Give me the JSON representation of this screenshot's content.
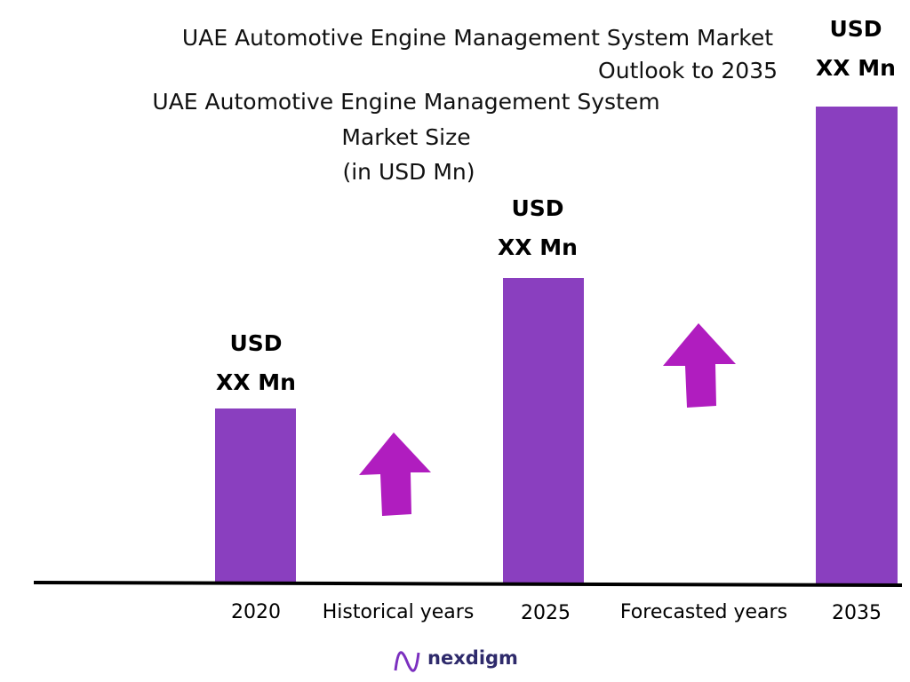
{
  "header": {
    "title_lines": [
      "UAE Automotive Engine Management System Market",
      "Outlook to 2035"
    ],
    "subtitle_lines": [
      "UAE Automotive Engine Management System",
      "Market Size",
      "(in USD Mn)"
    ]
  },
  "bars": [
    {
      "year": "2020",
      "label_lines": [
        "USD",
        "XX Mn"
      ]
    },
    {
      "year": "2025",
      "label_lines": [
        "USD",
        "XX Mn"
      ]
    },
    {
      "year": "2035",
      "label_lines": [
        "USD",
        "XX Mn"
      ]
    }
  ],
  "periods": [
    "Historical years",
    "Forecasted years"
  ],
  "logo": "nexdigm"
}
